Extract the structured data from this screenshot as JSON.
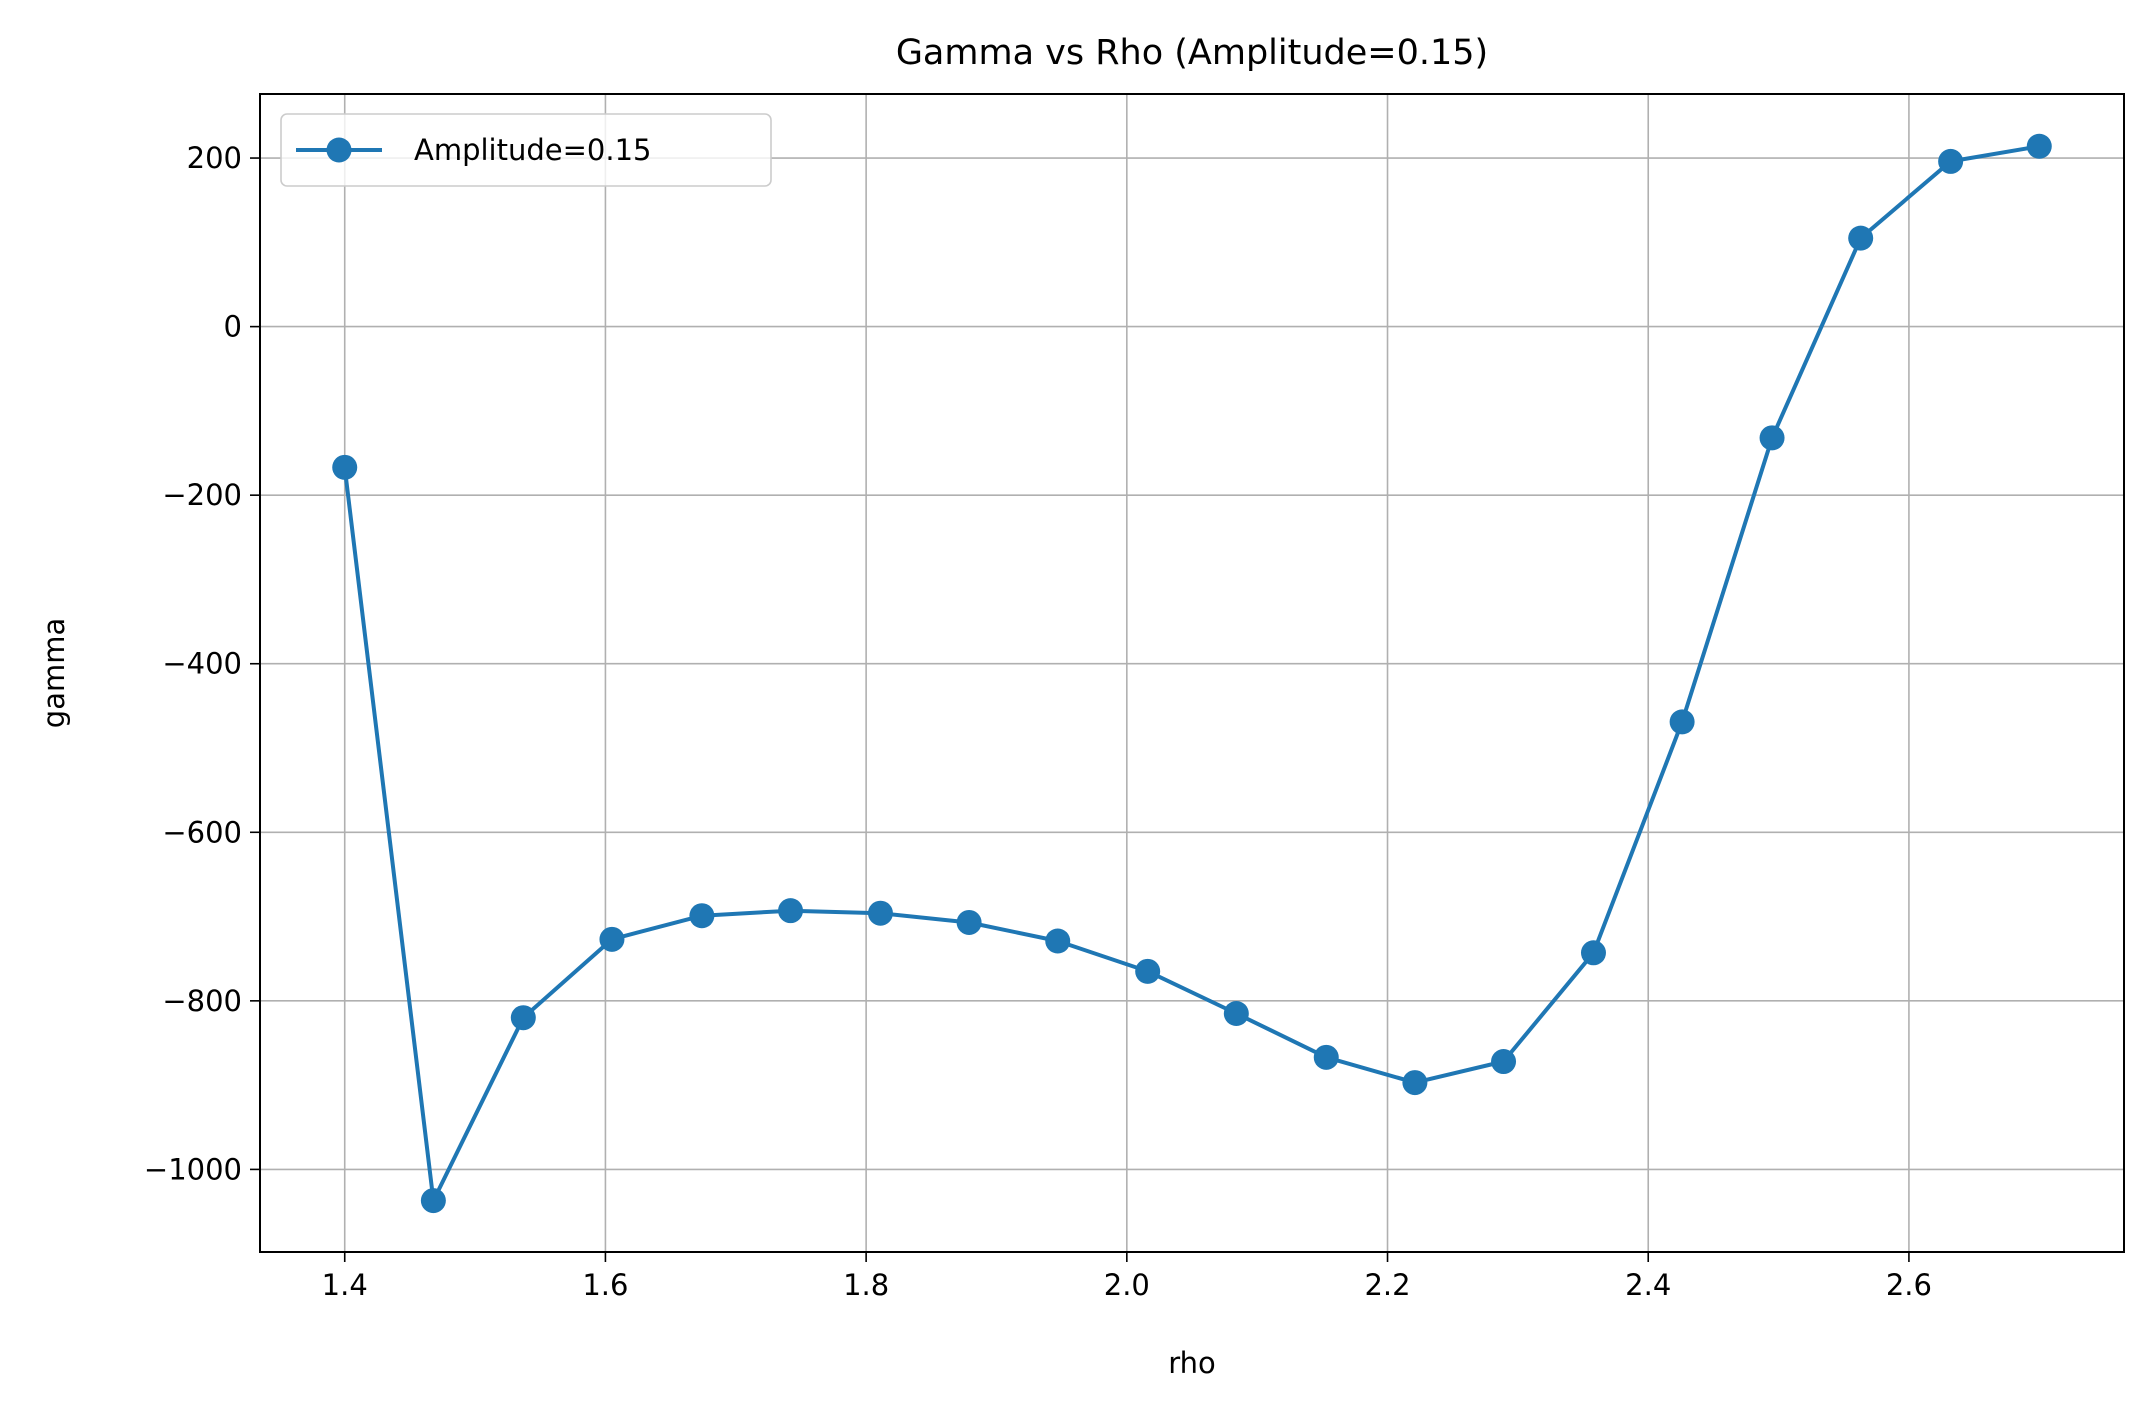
{
  "chart_data": {
    "type": "line",
    "title": "Gamma vs Rho (Amplitude=0.15)",
    "xlabel": "rho",
    "ylabel": "gamma",
    "xlim": [
      1.335,
      2.765
    ],
    "ylim": [
      -1098,
      276
    ],
    "xticks": [
      1.4,
      1.6,
      1.8,
      2.0,
      2.2,
      2.4,
      2.6
    ],
    "xtick_labels": [
      "1.4",
      "1.6",
      "1.8",
      "2.0",
      "2.2",
      "2.4",
      "2.6"
    ],
    "yticks": [
      200,
      0,
      -200,
      -400,
      -600,
      -800,
      -1000
    ],
    "ytick_labels": [
      "200",
      "0",
      "−200",
      "−400",
      "−600",
      "−800",
      "−1000"
    ],
    "grid": true,
    "legend_position": "top-left",
    "series": [
      {
        "name": "Amplitude=0.15",
        "color": "#1f77b4",
        "marker": "circle",
        "x": [
          1.4,
          1.468,
          1.537,
          1.605,
          1.674,
          1.742,
          1.811,
          1.879,
          1.947,
          2.016,
          2.084,
          2.153,
          2.221,
          2.289,
          2.358,
          2.426,
          2.495,
          2.563,
          2.632,
          2.7
        ],
        "y": [
          -167,
          -1037,
          -820,
          -727,
          -699,
          -693,
          -696,
          -707,
          -729,
          -765,
          -815,
          -867,
          -897,
          -872,
          -743,
          -469,
          -132,
          105,
          196,
          214
        ]
      }
    ]
  }
}
